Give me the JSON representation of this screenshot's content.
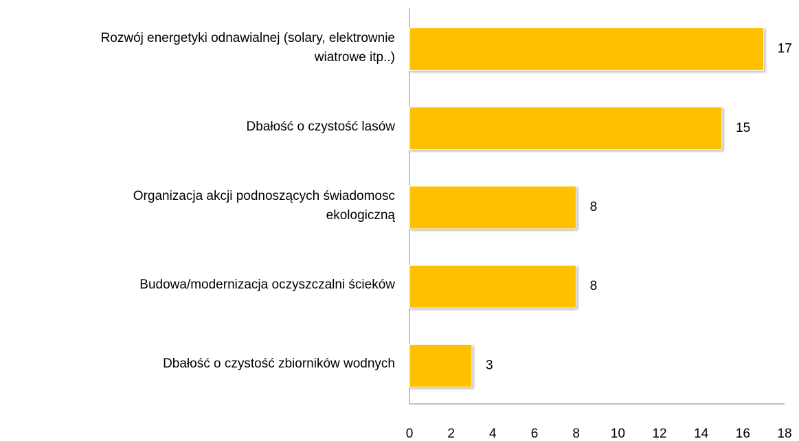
{
  "chart_data": {
    "type": "bar",
    "orientation": "horizontal",
    "categories": [
      "Rozwój energetyki odnawialnej (solary, elektrownie\nwiatrowe itp..)",
      "Dbałość o czystość lasów",
      "Organizacja akcji podnoszących świadomosc\nekologiczną",
      "Budowa/modernizacja oczyszczalni ścieków",
      "Dbałość o czystość zbiorników wodnych"
    ],
    "values": [
      17,
      15,
      8,
      8,
      3
    ],
    "color": "#ffc000",
    "xlim": [
      0,
      18
    ],
    "xticks": [
      0,
      2,
      4,
      6,
      8,
      10,
      12,
      14,
      16,
      18
    ],
    "grid": false
  }
}
